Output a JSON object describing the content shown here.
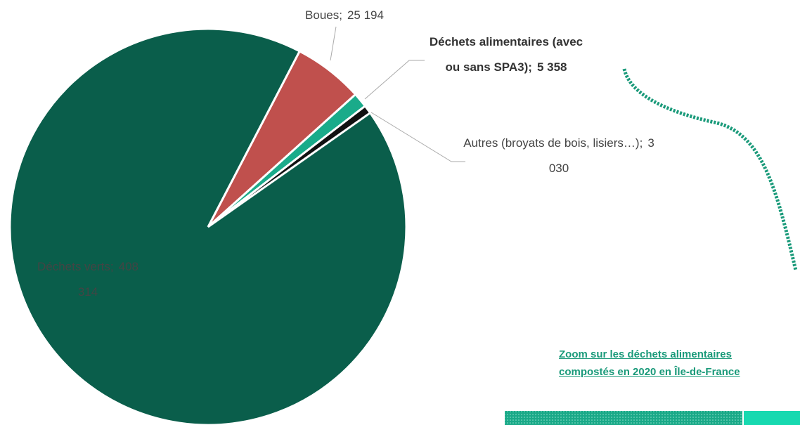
{
  "chart_data": {
    "type": "pie",
    "categories": [
      "Boues",
      "Déchets alimentaires (avec ou sans SPA3)",
      "Autres (broyats de bois, lisiers…)",
      "Déchets verts"
    ],
    "values": [
      25194,
      5358,
      3030,
      408314
    ],
    "value_labels": [
      "25 194",
      "5 358",
      "3 030",
      "408 314"
    ],
    "colors": [
      "#c0504d",
      "#1aab8a",
      "#111111",
      "#0a5e4b"
    ],
    "label_separator": ";",
    "start_angle": 27.5
  },
  "zoom_caption": [
    "Zoom sur les déchets alimentaires",
    "compostés en 2020 en Île-de-France"
  ]
}
